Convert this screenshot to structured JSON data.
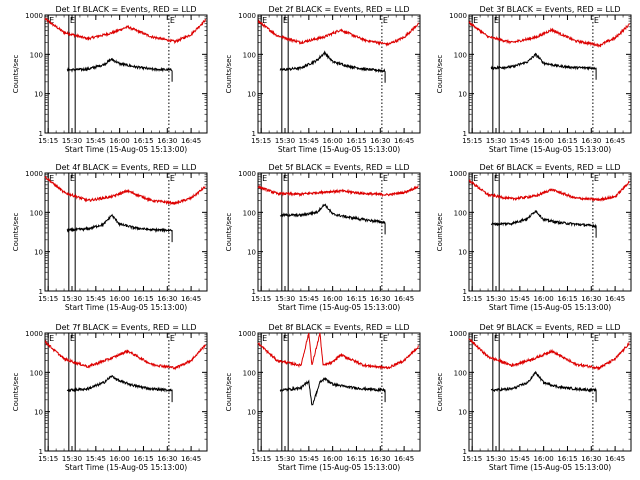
{
  "figure": {
    "xlabel": "Start Time (15-Aug-05 15:13:00)",
    "ylabel": "Counts/sec",
    "line_colors": {
      "events": "#000000",
      "lld": "#dd0000"
    },
    "background": "#ffffff",
    "axis_color": "#000000"
  },
  "chart_data": [
    {
      "type": "line",
      "panel": 1,
      "title": "Det 1f BLACK = Events, RED = LLD",
      "y_scale": "log",
      "ylim": [
        1,
        1000
      ],
      "yticks": [
        "1",
        "10",
        "100",
        "1000"
      ],
      "xlim": [
        "15:13",
        "16:55"
      ],
      "xticks": [
        "15:15",
        "15:30",
        "15:45",
        "16:00",
        "16:15",
        "16:30",
        "16:45"
      ],
      "grid": false,
      "markers": [
        {
          "label": "E",
          "time": "15:15",
          "style": "solid"
        },
        {
          "label": "E",
          "time": "15:28",
          "style": "solid"
        },
        {
          "label": "",
          "time": "15:32",
          "style": "solid"
        },
        {
          "label": "E",
          "time": "16:31",
          "style": "dotted"
        }
      ],
      "series": [
        {
          "name": "LLD",
          "color": "#dd0000",
          "events_start": "15:13",
          "events_end": "16:54",
          "x": [
            "15:13",
            "15:25",
            "15:40",
            "15:55",
            "16:05",
            "16:20",
            "16:35",
            "16:45",
            "16:54"
          ],
          "y": [
            800,
            360,
            250,
            350,
            500,
            280,
            210,
            320,
            750
          ]
        },
        {
          "name": "Events",
          "color": "#000000",
          "events_start": "15:27",
          "events_end": "16:33",
          "x": [
            "15:27",
            "15:40",
            "15:50",
            "15:55",
            "16:00",
            "16:10",
            "16:20",
            "16:33"
          ],
          "y": [
            40,
            42,
            55,
            75,
            58,
            48,
            42,
            40
          ]
        }
      ]
    },
    {
      "type": "line",
      "panel": 2,
      "title": "Det 2f BLACK = Events, RED = LLD",
      "y_scale": "log",
      "ylim": [
        1,
        1000
      ],
      "yticks": [
        "1",
        "10",
        "100",
        "1000"
      ],
      "xlim": [
        "15:13",
        "16:55"
      ],
      "xticks": [
        "15:15",
        "15:30",
        "15:45",
        "16:00",
        "16:15",
        "16:30",
        "16:45"
      ],
      "grid": false,
      "markers": [
        {
          "label": "E",
          "time": "15:15",
          "style": "solid"
        },
        {
          "label": "E",
          "time": "15:28",
          "style": "solid"
        },
        {
          "label": "",
          "time": "15:32",
          "style": "solid"
        },
        {
          "label": "E",
          "time": "16:31",
          "style": "dotted"
        }
      ],
      "series": [
        {
          "name": "LLD",
          "color": "#dd0000",
          "events_start": "15:13",
          "events_end": "16:54",
          "x": [
            "15:13",
            "15:25",
            "15:40",
            "15:55",
            "16:05",
            "16:20",
            "16:35",
            "16:45",
            "16:54"
          ],
          "y": [
            700,
            300,
            200,
            280,
            420,
            230,
            180,
            270,
            600
          ]
        },
        {
          "name": "Events",
          "color": "#000000",
          "events_start": "15:27",
          "events_end": "16:33",
          "x": [
            "15:27",
            "15:40",
            "15:50",
            "15:55",
            "16:00",
            "16:10",
            "16:20",
            "16:33"
          ],
          "y": [
            40,
            45,
            70,
            110,
            65,
            50,
            42,
            38
          ]
        }
      ]
    },
    {
      "type": "line",
      "panel": 3,
      "title": "Det 3f BLACK = Events, RED = LLD",
      "y_scale": "log",
      "ylim": [
        1,
        1000
      ],
      "yticks": [
        "1",
        "10",
        "100",
        "1000"
      ],
      "xlim": [
        "15:13",
        "16:55"
      ],
      "xticks": [
        "15:15",
        "15:30",
        "15:45",
        "16:00",
        "16:15",
        "16:30",
        "16:45"
      ],
      "grid": false,
      "markers": [
        {
          "label": "E",
          "time": "15:15",
          "style": "solid"
        },
        {
          "label": "E",
          "time": "15:28",
          "style": "solid"
        },
        {
          "label": "",
          "time": "15:32",
          "style": "solid"
        },
        {
          "label": "E",
          "time": "16:31",
          "style": "dotted"
        }
      ],
      "series": [
        {
          "name": "LLD",
          "color": "#dd0000",
          "events_start": "15:13",
          "events_end": "16:54",
          "x": [
            "15:13",
            "15:25",
            "15:40",
            "15:55",
            "16:05",
            "16:20",
            "16:35",
            "16:45",
            "16:54"
          ],
          "y": [
            650,
            280,
            200,
            270,
            420,
            220,
            170,
            260,
            580
          ]
        },
        {
          "name": "Events",
          "color": "#000000",
          "events_start": "15:27",
          "events_end": "16:33",
          "x": [
            "15:27",
            "15:40",
            "15:50",
            "15:55",
            "16:00",
            "16:10",
            "16:20",
            "16:33"
          ],
          "y": [
            45,
            48,
            65,
            100,
            60,
            50,
            46,
            45
          ]
        }
      ]
    },
    {
      "type": "line",
      "panel": 4,
      "title": "Det 4f BLACK = Events, RED = LLD",
      "y_scale": "log",
      "ylim": [
        1,
        1000
      ],
      "yticks": [
        "1",
        "10",
        "100",
        "1000"
      ],
      "xlim": [
        "15:13",
        "16:55"
      ],
      "xticks": [
        "15:15",
        "15:30",
        "15:45",
        "16:00",
        "16:15",
        "16:30",
        "16:45"
      ],
      "grid": false,
      "markers": [
        {
          "label": "E",
          "time": "15:15",
          "style": "solid"
        },
        {
          "label": "E",
          "time": "15:28",
          "style": "solid"
        },
        {
          "label": "",
          "time": "15:32",
          "style": "solid"
        },
        {
          "label": "E",
          "time": "16:31",
          "style": "dotted"
        }
      ],
      "series": [
        {
          "name": "LLD",
          "color": "#dd0000",
          "events_start": "15:13",
          "events_end": "16:54",
          "x": [
            "15:13",
            "15:25",
            "15:40",
            "15:55",
            "16:05",
            "16:20",
            "16:35",
            "16:45",
            "16:54"
          ],
          "y": [
            800,
            320,
            200,
            250,
            350,
            200,
            170,
            230,
            450
          ]
        },
        {
          "name": "Events",
          "color": "#000000",
          "events_start": "15:27",
          "events_end": "16:33",
          "x": [
            "15:27",
            "15:40",
            "15:50",
            "15:55",
            "16:00",
            "16:10",
            "16:20",
            "16:33"
          ],
          "y": [
            35,
            38,
            50,
            85,
            50,
            40,
            36,
            35
          ]
        }
      ]
    },
    {
      "type": "line",
      "panel": 5,
      "title": "Det 5f BLACK = Events, RED = LLD",
      "y_scale": "log",
      "ylim": [
        1,
        1000
      ],
      "yticks": [
        "1",
        "10",
        "100",
        "1000"
      ],
      "xlim": [
        "15:13",
        "16:55"
      ],
      "xticks": [
        "15:15",
        "15:30",
        "15:45",
        "16:00",
        "16:15",
        "16:30",
        "16:45"
      ],
      "grid": false,
      "markers": [
        {
          "label": "E",
          "time": "15:15",
          "style": "solid"
        },
        {
          "label": "E",
          "time": "15:28",
          "style": "solid"
        },
        {
          "label": "",
          "time": "15:32",
          "style": "solid"
        },
        {
          "label": "E",
          "time": "16:31",
          "style": "dotted"
        }
      ],
      "series": [
        {
          "name": "LLD",
          "color": "#dd0000",
          "events_start": "15:13",
          "events_end": "16:54",
          "x": [
            "15:13",
            "15:25",
            "15:40",
            "15:55",
            "16:05",
            "16:20",
            "16:35",
            "16:45",
            "16:54"
          ],
          "y": [
            450,
            300,
            290,
            330,
            350,
            300,
            280,
            320,
            450
          ]
        },
        {
          "name": "Events",
          "color": "#000000",
          "events_start": "15:27",
          "events_end": "16:33",
          "x": [
            "15:27",
            "15:40",
            "15:50",
            "15:55",
            "16:00",
            "16:10",
            "16:20",
            "16:33"
          ],
          "y": [
            85,
            85,
            100,
            160,
            90,
            75,
            65,
            55
          ]
        }
      ]
    },
    {
      "type": "line",
      "panel": 6,
      "title": "Det 6f BLACK = Events, RED = LLD",
      "y_scale": "log",
      "ylim": [
        1,
        1000
      ],
      "yticks": [
        "1",
        "10",
        "100",
        "1000"
      ],
      "xlim": [
        "15:13",
        "16:55"
      ],
      "xticks": [
        "15:15",
        "15:30",
        "15:45",
        "16:00",
        "16:15",
        "16:30",
        "16:45"
      ],
      "grid": false,
      "markers": [
        {
          "label": "E",
          "time": "15:15",
          "style": "solid"
        },
        {
          "label": "E",
          "time": "15:28",
          "style": "solid"
        },
        {
          "label": "",
          "time": "15:32",
          "style": "solid"
        },
        {
          "label": "E",
          "time": "16:31",
          "style": "dotted"
        }
      ],
      "series": [
        {
          "name": "LLD",
          "color": "#dd0000",
          "events_start": "15:13",
          "events_end": "16:54",
          "x": [
            "15:13",
            "15:25",
            "15:40",
            "15:55",
            "16:05",
            "16:20",
            "16:35",
            "16:45",
            "16:54"
          ],
          "y": [
            650,
            280,
            220,
            260,
            380,
            230,
            210,
            250,
            600
          ]
        },
        {
          "name": "Events",
          "color": "#000000",
          "events_start": "15:27",
          "events_end": "16:33",
          "x": [
            "15:27",
            "15:40",
            "15:50",
            "15:55",
            "16:00",
            "16:10",
            "16:20",
            "16:33"
          ],
          "y": [
            50,
            52,
            70,
            110,
            65,
            55,
            50,
            45
          ]
        }
      ]
    },
    {
      "type": "line",
      "panel": 7,
      "title": "Det 7f BLACK = Events, RED = LLD",
      "y_scale": "log",
      "ylim": [
        1,
        1000
      ],
      "yticks": [
        "1",
        "10",
        "100",
        "1000"
      ],
      "xlim": [
        "15:13",
        "16:55"
      ],
      "xticks": [
        "15:15",
        "15:30",
        "15:45",
        "16:00",
        "16:15",
        "16:30",
        "16:45"
      ],
      "grid": false,
      "markers": [
        {
          "label": "E",
          "time": "15:15",
          "style": "solid"
        },
        {
          "label": "E",
          "time": "15:28",
          "style": "solid"
        },
        {
          "label": "",
          "time": "15:32",
          "style": "solid"
        },
        {
          "label": "E",
          "time": "16:31",
          "style": "dotted"
        }
      ],
      "series": [
        {
          "name": "LLD",
          "color": "#dd0000",
          "events_start": "15:13",
          "events_end": "16:54",
          "x": [
            "15:13",
            "15:25",
            "15:40",
            "15:55",
            "16:05",
            "16:20",
            "16:35",
            "16:45",
            "16:54"
          ],
          "y": [
            600,
            220,
            140,
            230,
            350,
            160,
            130,
            200,
            500
          ]
        },
        {
          "name": "Events",
          "color": "#000000",
          "events_start": "15:27",
          "events_end": "16:33",
          "x": [
            "15:27",
            "15:40",
            "15:50",
            "15:55",
            "16:00",
            "16:10",
            "16:20",
            "16:33"
          ],
          "y": [
            35,
            38,
            55,
            80,
            60,
            45,
            38,
            35
          ]
        }
      ]
    },
    {
      "type": "line",
      "panel": 8,
      "title": "Det 8f BLACK = Events, RED = LLD",
      "y_scale": "log",
      "ylim": [
        1,
        1000
      ],
      "yticks": [
        "1",
        "10",
        "100",
        "1000"
      ],
      "xlim": [
        "15:13",
        "16:55"
      ],
      "xticks": [
        "15:15",
        "15:30",
        "15:45",
        "16:00",
        "16:15",
        "16:30",
        "16:45"
      ],
      "grid": false,
      "markers": [
        {
          "label": "E",
          "time": "15:15",
          "style": "solid"
        },
        {
          "label": "E",
          "time": "15:28",
          "style": "solid"
        },
        {
          "label": "",
          "time": "15:32",
          "style": "solid"
        },
        {
          "label": "E",
          "time": "16:31",
          "style": "dotted"
        }
      ],
      "series": [
        {
          "name": "LLD",
          "color": "#dd0000",
          "events_start": "15:13",
          "events_end": "16:54",
          "x": [
            "15:13",
            "15:25",
            "15:40",
            "15:45",
            "15:47",
            "15:52",
            "15:54",
            "16:00",
            "16:05",
            "16:20",
            "16:35",
            "16:45",
            "16:54"
          ],
          "y": [
            550,
            200,
            150,
            1000,
            150,
            1000,
            150,
            180,
            280,
            150,
            130,
            200,
            450
          ]
        },
        {
          "name": "Events",
          "color": "#000000",
          "events_start": "15:27",
          "events_end": "16:33",
          "x": [
            "15:27",
            "15:40",
            "15:45",
            "15:47",
            "15:52",
            "15:55",
            "16:00",
            "16:10",
            "16:20",
            "16:33"
          ],
          "y": [
            35,
            40,
            60,
            14,
            55,
            70,
            50,
            42,
            38,
            35
          ]
        }
      ]
    },
    {
      "type": "line",
      "panel": 9,
      "title": "Det 9f BLACK = Events, RED = LLD",
      "y_scale": "log",
      "ylim": [
        1,
        1000
      ],
      "yticks": [
        "1",
        "10",
        "100",
        "1000"
      ],
      "xlim": [
        "15:13",
        "16:55"
      ],
      "xticks": [
        "15:15",
        "15:30",
        "15:45",
        "16:00",
        "16:15",
        "16:30",
        "16:45"
      ],
      "grid": false,
      "markers": [
        {
          "label": "E",
          "time": "15:15",
          "style": "solid"
        },
        {
          "label": "E",
          "time": "15:28",
          "style": "solid"
        },
        {
          "label": "",
          "time": "15:32",
          "style": "solid"
        },
        {
          "label": "E",
          "time": "16:31",
          "style": "dotted"
        }
      ],
      "series": [
        {
          "name": "LLD",
          "color": "#dd0000",
          "events_start": "15:13",
          "events_end": "16:54",
          "x": [
            "15:13",
            "15:25",
            "15:40",
            "15:55",
            "16:05",
            "16:20",
            "16:35",
            "16:45",
            "16:54"
          ],
          "y": [
            700,
            250,
            150,
            230,
            350,
            160,
            130,
            220,
            550
          ]
        },
        {
          "name": "Events",
          "color": "#000000",
          "events_start": "15:27",
          "events_end": "16:33",
          "x": [
            "15:27",
            "15:40",
            "15:50",
            "15:55",
            "16:00",
            "16:10",
            "16:20",
            "16:33"
          ],
          "y": [
            35,
            38,
            55,
            100,
            55,
            42,
            38,
            35
          ]
        }
      ]
    }
  ]
}
